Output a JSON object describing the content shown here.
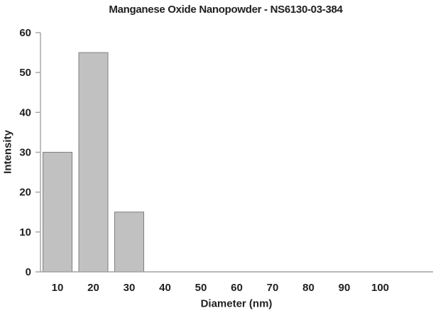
{
  "chart_data": {
    "type": "bar",
    "title": "Manganese Oxide Nanopowder - NS6130-03-384",
    "xlabel": "Diameter (nm)",
    "ylabel": "Intensity",
    "categories": [
      "10",
      "20",
      "30",
      "40",
      "50",
      "60",
      "70",
      "80",
      "90",
      "100"
    ],
    "values": [
      30,
      55,
      15,
      0,
      0,
      0,
      0,
      0,
      0,
      0
    ],
    "ylim": [
      0,
      60
    ],
    "yticks": [
      0,
      10,
      20,
      30,
      40,
      50,
      60
    ],
    "grid": false,
    "legend": "none",
    "colors": {
      "bar_fill": "#c1c1c1",
      "bar_border": "#7f7f7f",
      "axis": "#a3a3a3",
      "text": "#1f1f1f",
      "background": "#ffffff"
    }
  }
}
